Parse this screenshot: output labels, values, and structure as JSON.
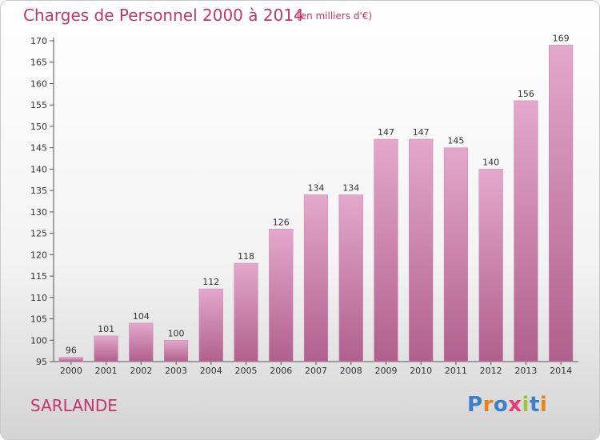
{
  "title": "Charges de Personnel 2000 à 2014",
  "subtitle": "(en milliers d'€)",
  "place": "SARLANDE",
  "logo_text": "Proxiti",
  "colors": {
    "bar_top": "#e4a8cc",
    "bar_bottom": "#b0608c",
    "title": "#c2366a"
  },
  "chart_data": {
    "type": "bar",
    "title": "Charges de Personnel 2000 à 2014",
    "subtitle": "(en milliers d'€)",
    "categories": [
      "2000",
      "2001",
      "2002",
      "2003",
      "2004",
      "2005",
      "2006",
      "2007",
      "2008",
      "2009",
      "2010",
      "2011",
      "2012",
      "2013",
      "2014"
    ],
    "values": [
      96,
      101,
      104,
      100,
      112,
      118,
      126,
      134,
      134,
      147,
      147,
      145,
      140,
      156,
      169
    ],
    "ylim": [
      95,
      170
    ],
    "yticks": [
      95,
      100,
      105,
      110,
      115,
      120,
      125,
      130,
      135,
      140,
      145,
      150,
      155,
      160,
      165,
      170
    ],
    "grid": false,
    "data_labels": true
  }
}
